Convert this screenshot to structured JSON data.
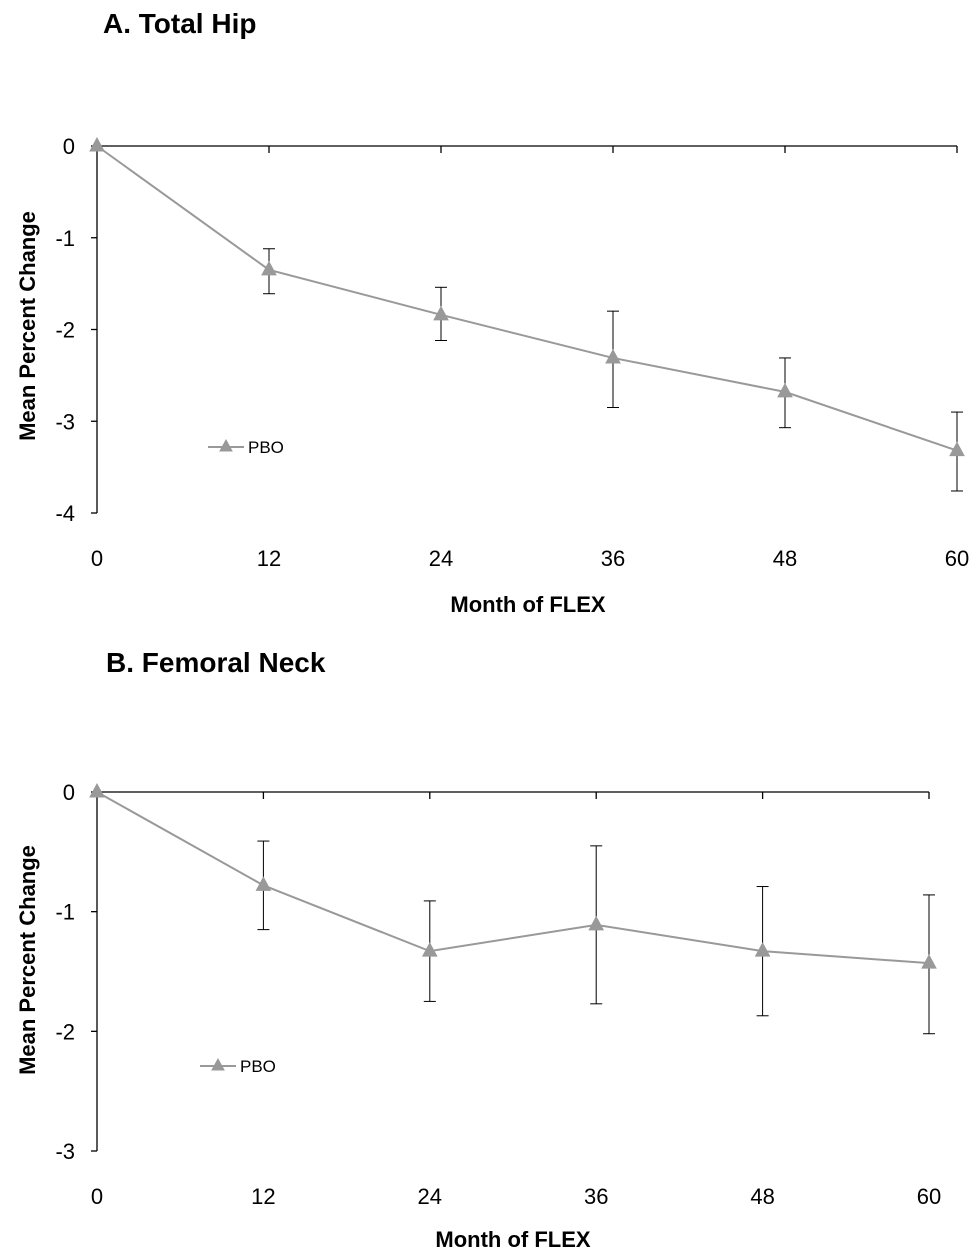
{
  "chart_data": [
    {
      "type": "line",
      "title": "A.  Total Hip",
      "xlabel": "Month of FLEX",
      "ylabel": "Mean Percent Change",
      "x": [
        0,
        12,
        24,
        36,
        48,
        60
      ],
      "xticks": [
        "0",
        "12",
        "24",
        "36",
        "48",
        "60"
      ],
      "yticks": [
        "0",
        "-1",
        "-2",
        "-3",
        "-4"
      ],
      "ylim": [
        -4,
        0
      ],
      "xlim": [
        0,
        60
      ],
      "grid": false,
      "legend_position": "left-bottom",
      "series": [
        {
          "name": "PBO",
          "color": "#999999",
          "marker": "triangle",
          "values": [
            0,
            -1.35,
            -1.84,
            -2.31,
            -2.68,
            -3.32
          ],
          "error_low": [
            0,
            -1.61,
            -2.12,
            -2.85,
            -3.07,
            -3.76
          ],
          "error_high": [
            0,
            -1.12,
            -1.54,
            -1.8,
            -2.31,
            -2.9
          ]
        }
      ]
    },
    {
      "type": "line",
      "title": "B.  Femoral Neck",
      "xlabel": "Month of FLEX",
      "ylabel": "Mean Percent Change",
      "x": [
        0,
        12,
        24,
        36,
        48,
        60
      ],
      "xticks": [
        "0",
        "12",
        "24",
        "36",
        "48",
        "60"
      ],
      "yticks": [
        "0",
        "-1",
        "-2",
        "-3"
      ],
      "ylim": [
        -3,
        0
      ],
      "xlim": [
        0,
        60
      ],
      "grid": false,
      "legend_position": "left-bottom",
      "series": [
        {
          "name": "PBO",
          "color": "#999999",
          "marker": "triangle",
          "values": [
            0,
            -0.78,
            -1.33,
            -1.11,
            -1.33,
            -1.43
          ],
          "error_low": [
            0,
            -1.15,
            -1.75,
            -1.77,
            -1.87,
            -2.02
          ],
          "error_high": [
            0,
            -0.41,
            -0.91,
            -0.45,
            -0.79,
            -0.86
          ]
        }
      ]
    }
  ]
}
